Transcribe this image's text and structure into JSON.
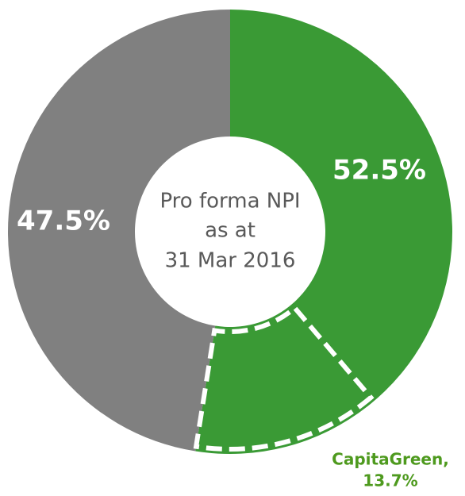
{
  "chart_data": {
    "type": "donut",
    "center_text": [
      "Pro forma NPI",
      "as at",
      "31 Mar 2016"
    ],
    "values": [
      52.5,
      47.5
    ],
    "value_labels": [
      "52.5%",
      "47.5%"
    ],
    "colors": [
      "#3a9a35",
      "#808080"
    ],
    "highlight": {
      "name": "CapitaGreen,",
      "value": 13.7,
      "value_label": "13.7%",
      "color": "#4e9a1e"
    }
  }
}
